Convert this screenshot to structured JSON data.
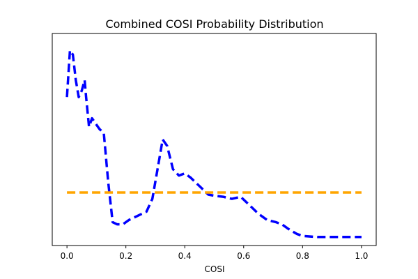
{
  "chart_data": {
    "type": "line",
    "title": "Combined COSI Probability Distribution",
    "xlabel": "COSI",
    "ylabel": "",
    "xlim": [
      -0.05,
      1.05
    ],
    "ylim": [
      0,
      1
    ],
    "xticks": [
      0.0,
      0.2,
      0.4,
      0.6,
      0.8,
      1.0
    ],
    "xtick_labels": [
      "0.0",
      "0.2",
      "0.4",
      "0.6",
      "0.8",
      "1.0"
    ],
    "yticks_visible": false,
    "grid": false,
    "legend": "none",
    "series": [
      {
        "color": "#0000ff",
        "style": "dashed",
        "x": [
          0.0,
          0.01,
          0.02,
          0.03,
          0.04,
          0.05,
          0.06,
          0.065,
          0.075,
          0.085,
          0.1,
          0.11,
          0.125,
          0.14,
          0.155,
          0.17,
          0.19,
          0.21,
          0.24,
          0.27,
          0.29,
          0.31,
          0.325,
          0.34,
          0.36,
          0.38,
          0.4,
          0.42,
          0.45,
          0.48,
          0.5,
          0.53,
          0.56,
          0.59,
          0.62,
          0.65,
          0.68,
          0.71,
          0.73,
          0.75,
          0.78,
          0.8,
          0.85,
          0.9,
          0.95,
          1.0
        ],
        "y": [
          0.7,
          0.92,
          0.9,
          0.78,
          0.7,
          0.73,
          0.78,
          0.7,
          0.56,
          0.6,
          0.57,
          0.55,
          0.53,
          0.3,
          0.11,
          0.1,
          0.1,
          0.12,
          0.14,
          0.16,
          0.22,
          0.38,
          0.5,
          0.47,
          0.36,
          0.33,
          0.34,
          0.32,
          0.28,
          0.24,
          0.235,
          0.23,
          0.22,
          0.23,
          0.19,
          0.15,
          0.12,
          0.11,
          0.1,
          0.08,
          0.055,
          0.045,
          0.04,
          0.04,
          0.04,
          0.04
        ]
      },
      {
        "color": "#ffa500",
        "style": "dashed",
        "x": [
          0.0,
          1.0
        ],
        "y": [
          0.25,
          0.25
        ]
      }
    ]
  }
}
